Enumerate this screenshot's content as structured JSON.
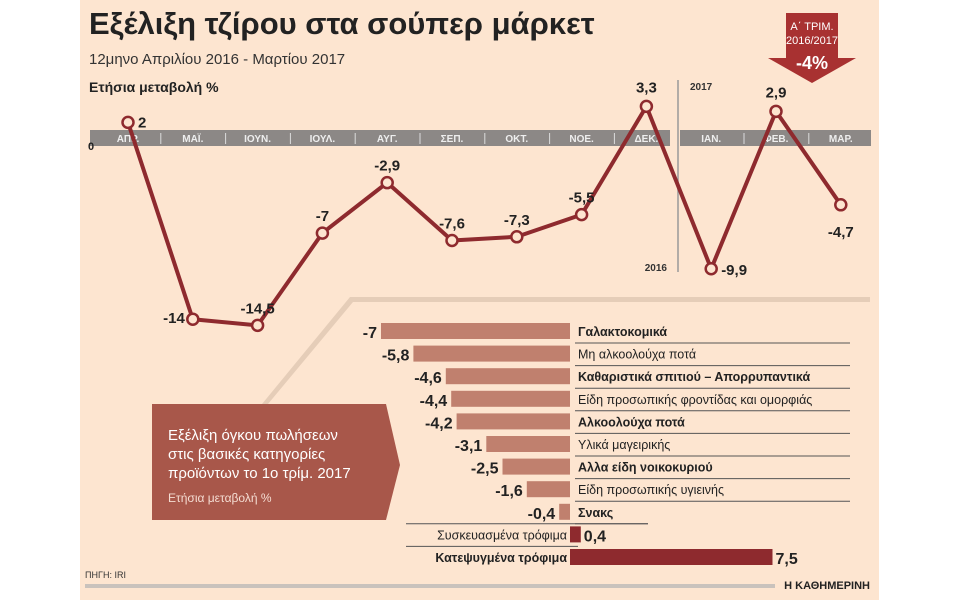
{
  "header": {
    "title": "Εξέλιξη τζίρου στα σούπερ μάρκετ",
    "subtitle": "12μηνο Απριλίου 2016 - Μαρτίου 2017"
  },
  "badge": {
    "line1": "Α΄ ΤΡΙΜ.",
    "line2": "2016/2017",
    "value": "-4%"
  },
  "colors": {
    "background": "#fde5d0",
    "line": "#8e2a2e",
    "band": "#8c8886",
    "bar_negative": "#c0806e",
    "bar_positive": "#8e2a2e",
    "box": "#a8574a"
  },
  "chart_data": [
    {
      "type": "line",
      "ylabel": "Ετήσια μεταβολή %",
      "zero_label": "0",
      "year_marker_before": "2016",
      "year_marker_after": "2017",
      "categories": [
        "ΑΠΡ.",
        "ΜΑΪ.",
        "ΙΟΥΝ.",
        "ΙΟΥΛ.",
        "ΑΥΓ.",
        "ΣΕΠ.",
        "ΟΚΤ.",
        "ΝΟΕ.",
        "ΔΕΚ.",
        "ΙΑΝ.",
        "ΦΕΒ.",
        "ΜΑΡ."
      ],
      "values": [
        2,
        -14,
        -14.5,
        -7,
        -2.9,
        -7.6,
        -7.3,
        -5.5,
        3.3,
        -9.9,
        2.9,
        -4.7
      ],
      "labels": [
        "2",
        "-14",
        "-14,5",
        "-7",
        "-2,9",
        "-7,6",
        "-7,3",
        "-5,5",
        "3,3",
        "-9,9",
        "2,9",
        "-4,7"
      ]
    },
    {
      "type": "bar",
      "title": "Εξέλιξη όγκου πωλήσεων στις βασικές κατηγορίες προϊόντων το 1ο τρίμ. 2017",
      "subtitle": "Ετήσια μεταβολή %",
      "categories": [
        "Γαλακτοκομικά",
        "Μη αλκοολούχα ποτά",
        "Καθαριστικά σπιτιού – Απορρυπαντικά",
        "Είδη προσωπικής φροντίδας και ομορφιάς",
        "Αλκοολούχα ποτά",
        "Υλικά μαγειρικής",
        "Αλλα είδη νοικοκυριού",
        "Είδη προσωπικής υγιεινής",
        "Σνακς",
        "Συσκευασμένα τρόφιμα",
        "Κατεψυγμένα τρόφιμα"
      ],
      "bold": [
        true,
        false,
        true,
        false,
        true,
        false,
        true,
        false,
        true,
        false,
        true
      ],
      "values": [
        -7,
        -5.8,
        -4.6,
        -4.4,
        -4.2,
        -3.1,
        -2.5,
        -1.6,
        -0.4,
        0.4,
        7.5
      ],
      "labels": [
        "-7",
        "-5,8",
        "-4,6",
        "-4,4",
        "-4,2",
        "-3,1",
        "-2,5",
        "-1,6",
        "-0,4",
        "0,4",
        "7,5"
      ]
    }
  ],
  "footer": {
    "source": "ΠΗΓΗ: IRI",
    "brand": "Η ΚΑΘΗΜΕΡΙΝΗ"
  }
}
